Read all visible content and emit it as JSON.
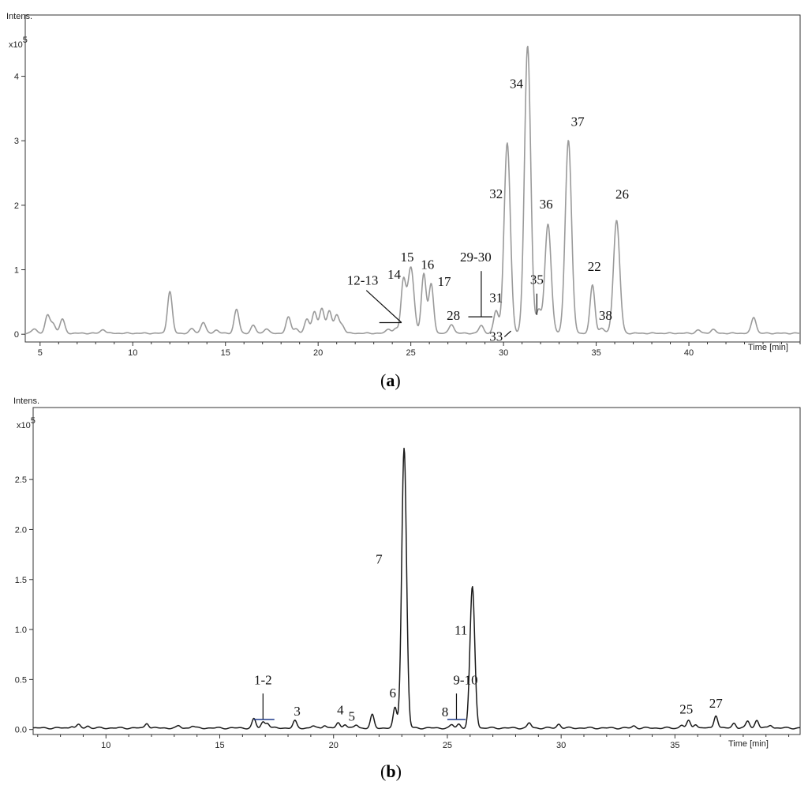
{
  "chart_data": [
    {
      "type": "line",
      "panel_label_open": "(",
      "panel_label_letter": "a",
      "panel_label_close": ")",
      "ylabel": "Intens.",
      "yscale_label": "x10",
      "yscale_exp": "5",
      "xlabel": "Time [min]",
      "xlim": [
        4.2,
        46
      ],
      "ylim": [
        -0.12,
        4.95
      ],
      "xticks": [
        5,
        10,
        15,
        20,
        25,
        30,
        35,
        40
      ],
      "yticks": [
        0,
        1,
        2,
        3,
        4
      ],
      "peaks": [
        [
          4.7,
          0.07
        ],
        [
          5.4,
          0.27
        ],
        [
          5.7,
          0.15
        ],
        [
          6.2,
          0.22
        ],
        [
          8.4,
          0.06
        ],
        [
          12.0,
          0.65
        ],
        [
          13.2,
          0.07
        ],
        [
          13.8,
          0.17
        ],
        [
          14.5,
          0.05
        ],
        [
          15.6,
          0.37
        ],
        [
          16.5,
          0.12
        ],
        [
          17.2,
          0.07
        ],
        [
          18.4,
          0.25
        ],
        [
          18.8,
          0.07
        ],
        [
          19.4,
          0.22
        ],
        [
          19.8,
          0.33
        ],
        [
          20.2,
          0.38
        ],
        [
          20.6,
          0.35
        ],
        [
          21.0,
          0.28
        ],
        [
          21.3,
          0.12
        ],
        [
          23.8,
          0.07
        ],
        [
          24.2,
          0.07
        ],
        [
          24.6,
          0.8
        ],
        [
          25.0,
          1.02
        ],
        [
          25.7,
          0.93
        ],
        [
          26.1,
          0.76
        ],
        [
          27.2,
          0.14
        ],
        [
          28.8,
          0.12
        ],
        [
          29.6,
          0.35
        ],
        [
          30.2,
          2.95
        ],
        [
          31.3,
          4.45
        ],
        [
          31.9,
          0.35
        ],
        [
          32.4,
          1.7
        ],
        [
          33.5,
          3.0
        ],
        [
          34.8,
          0.75
        ],
        [
          35.3,
          0.08
        ],
        [
          36.1,
          1.75
        ],
        [
          40.5,
          0.05
        ],
        [
          41.3,
          0.06
        ],
        [
          43.5,
          0.25
        ]
      ],
      "labels": [
        {
          "text": "34",
          "x": 30.7,
          "y": 3.82
        },
        {
          "text": "37",
          "x": 34.0,
          "y": 3.23
        },
        {
          "text": "32",
          "x": 29.6,
          "y": 2.11
        },
        {
          "text": "36",
          "x": 32.3,
          "y": 1.95
        },
        {
          "text": "26",
          "x": 36.4,
          "y": 2.1
        },
        {
          "text": "15",
          "x": 24.8,
          "y": 1.13
        },
        {
          "text": "16",
          "x": 25.9,
          "y": 1.01
        },
        {
          "text": "29-30",
          "x": 28.5,
          "y": 1.13
        },
        {
          "text": "14",
          "x": 24.1,
          "y": 0.86
        },
        {
          "text": "12-13",
          "x": 22.4,
          "y": 0.77
        },
        {
          "text": "17",
          "x": 26.8,
          "y": 0.75
        },
        {
          "text": "35",
          "x": 31.8,
          "y": 0.78
        },
        {
          "text": "22",
          "x": 34.9,
          "y": 0.98
        },
        {
          "text": "31",
          "x": 29.6,
          "y": 0.5
        },
        {
          "text": "28",
          "x": 27.3,
          "y": 0.22
        },
        {
          "text": "38",
          "x": 35.5,
          "y": 0.22
        },
        {
          "text": "33",
          "x": 29.6,
          "y": -0.1
        }
      ]
    },
    {
      "type": "line",
      "panel_label_open": "(",
      "panel_label_letter": "b",
      "panel_label_close": ")",
      "ylabel": "Intens.",
      "yscale_label": "x10",
      "yscale_exp": "5",
      "xlabel": "Time [min]",
      "xlim": [
        6.8,
        40.5
      ],
      "ylim": [
        -0.05,
        3.22
      ],
      "xticks": [
        10,
        15,
        20,
        25,
        30,
        35
      ],
      "yticks": [
        0.0,
        0.5,
        1.0,
        1.5,
        2.0,
        2.5
      ],
      "yticklabels": [
        "0.0",
        "0.5",
        "1.0",
        "1.5",
        "2.0",
        "2.5"
      ],
      "peaks": [
        [
          8.5,
          0.02
        ],
        [
          8.8,
          0.03
        ],
        [
          9.2,
          0.02
        ],
        [
          11.8,
          0.05
        ],
        [
          13.2,
          0.02
        ],
        [
          13.8,
          0.02
        ],
        [
          16.5,
          0.09
        ],
        [
          16.9,
          0.06
        ],
        [
          17.1,
          0.05
        ],
        [
          18.3,
          0.07
        ],
        [
          19.1,
          0.02
        ],
        [
          19.6,
          0.03
        ],
        [
          20.2,
          0.05
        ],
        [
          20.5,
          0.04
        ],
        [
          21.0,
          0.03
        ],
        [
          21.7,
          0.13
        ],
        [
          22.7,
          0.2
        ],
        [
          23.1,
          2.8
        ],
        [
          25.2,
          0.03
        ],
        [
          25.5,
          0.04
        ],
        [
          26.1,
          1.41
        ],
        [
          28.6,
          0.05
        ],
        [
          29.9,
          0.04
        ],
        [
          33.2,
          0.02
        ],
        [
          35.3,
          0.03
        ],
        [
          35.6,
          0.07
        ],
        [
          35.9,
          0.04
        ],
        [
          36.8,
          0.13
        ],
        [
          37.6,
          0.05
        ],
        [
          38.2,
          0.07
        ],
        [
          38.6,
          0.08
        ],
        [
          39.2,
          0.03
        ]
      ],
      "labels": [
        {
          "text": "7",
          "x": 22.0,
          "y": 1.66
        },
        {
          "text": "11",
          "x": 25.6,
          "y": 0.95
        },
        {
          "text": "1-2",
          "x": 16.9,
          "y": 0.45
        },
        {
          "text": "6",
          "x": 22.6,
          "y": 0.32
        },
        {
          "text": "9-10",
          "x": 25.8,
          "y": 0.45
        },
        {
          "text": "3",
          "x": 18.4,
          "y": 0.14
        },
        {
          "text": "4",
          "x": 20.3,
          "y": 0.15
        },
        {
          "text": "5",
          "x": 20.8,
          "y": 0.09
        },
        {
          "text": "8",
          "x": 24.9,
          "y": 0.13
        },
        {
          "text": "25",
          "x": 35.5,
          "y": 0.16
        },
        {
          "text": "27",
          "x": 36.8,
          "y": 0.22
        }
      ]
    }
  ]
}
